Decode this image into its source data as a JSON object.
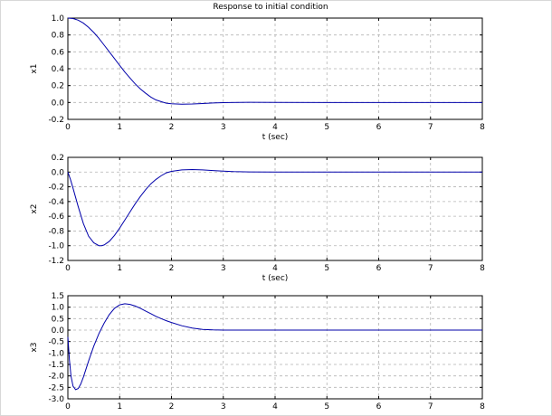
{
  "figure": {
    "title": "Response to initial condition"
  },
  "chart_data": [
    {
      "type": "line",
      "title": "Response to initial condition",
      "xlabel": "t (sec)",
      "ylabel": "x1",
      "xlim": [
        0,
        8
      ],
      "ylim": [
        -0.2,
        1.0
      ],
      "xticks": [
        0,
        1,
        2,
        3,
        4,
        5,
        6,
        7,
        8
      ],
      "yticks": [
        -0.2,
        0.0,
        0.2,
        0.4,
        0.6,
        0.8,
        1.0
      ],
      "ytick_labels": [
        "-0.2",
        "0.0",
        "0.2",
        "0.4",
        "0.6",
        "0.8",
        "1.0"
      ],
      "grid": true,
      "color": "#0000aa",
      "series": [
        {
          "x": [
            0,
            0.1,
            0.2,
            0.3,
            0.4,
            0.5,
            0.6,
            0.7,
            0.8,
            0.9,
            1.0,
            1.1,
            1.2,
            1.3,
            1.4,
            1.5,
            1.6,
            1.7,
            1.8,
            1.9,
            2.0,
            2.2,
            2.4,
            2.6,
            2.8,
            3.0,
            3.5,
            4.0,
            5.0,
            6.0,
            7.0,
            8.0
          ],
          "y": [
            1.0,
            0.995,
            0.975,
            0.94,
            0.89,
            0.83,
            0.76,
            0.68,
            0.6,
            0.52,
            0.44,
            0.36,
            0.29,
            0.22,
            0.16,
            0.11,
            0.065,
            0.03,
            0.01,
            -0.008,
            -0.015,
            -0.02,
            -0.018,
            -0.012,
            -0.006,
            -0.002,
            0.002,
            0.001,
            0.0,
            0.0,
            0.0,
            0.0
          ]
        }
      ]
    },
    {
      "type": "line",
      "xlabel": "t (sec)",
      "ylabel": "x2",
      "xlim": [
        0,
        8
      ],
      "ylim": [
        -1.2,
        0.2
      ],
      "xticks": [
        0,
        1,
        2,
        3,
        4,
        5,
        6,
        7,
        8
      ],
      "yticks": [
        -1.2,
        -1.0,
        -0.8,
        -0.6,
        -0.4,
        -0.2,
        0.0,
        0.2
      ],
      "ytick_labels": [
        "-1.2",
        "-1.0",
        "-0.8",
        "-0.6",
        "-0.4",
        "-0.2",
        "0.0",
        "0.2"
      ],
      "grid": true,
      "color": "#0000aa",
      "series": [
        {
          "x": [
            0,
            0.05,
            0.1,
            0.2,
            0.3,
            0.4,
            0.5,
            0.6,
            0.65,
            0.7,
            0.8,
            0.9,
            1.0,
            1.1,
            1.2,
            1.3,
            1.4,
            1.5,
            1.6,
            1.7,
            1.8,
            1.9,
            2.0,
            2.2,
            2.4,
            2.6,
            2.8,
            3.0,
            3.2,
            3.5,
            4.0,
            5.0,
            6.0,
            7.0,
            8.0
          ],
          "y": [
            0.0,
            -0.1,
            -0.22,
            -0.47,
            -0.7,
            -0.87,
            -0.96,
            -1.0,
            -1.0,
            -0.99,
            -0.94,
            -0.86,
            -0.76,
            -0.65,
            -0.54,
            -0.43,
            -0.33,
            -0.24,
            -0.16,
            -0.1,
            -0.05,
            -0.01,
            0.01,
            0.03,
            0.035,
            0.03,
            0.02,
            0.012,
            0.006,
            0.002,
            0.0,
            0.0,
            0.0,
            0.0,
            0.0
          ]
        }
      ]
    },
    {
      "type": "line",
      "xlabel": "",
      "ylabel": "x3",
      "xlim": [
        0,
        8
      ],
      "ylim": [
        -3.0,
        1.5
      ],
      "xticks": [
        0,
        1,
        2,
        3,
        4,
        5,
        6,
        7,
        8
      ],
      "yticks": [
        -3.0,
        -2.5,
        -2.0,
        -1.5,
        -1.0,
        -0.5,
        0.0,
        0.5,
        1.0,
        1.5
      ],
      "ytick_labels": [
        "-3.0",
        "-2.5",
        "-2.0",
        "-1.5",
        "-1.0",
        "-0.5",
        "0.0",
        "0.5",
        "1.0",
        "1.5"
      ],
      "grid": true,
      "color": "#0000aa",
      "series": [
        {
          "x": [
            0,
            0.03,
            0.06,
            0.1,
            0.15,
            0.2,
            0.25,
            0.3,
            0.35,
            0.4,
            0.5,
            0.6,
            0.7,
            0.8,
            0.9,
            1.0,
            1.1,
            1.2,
            1.3,
            1.4,
            1.5,
            1.6,
            1.7,
            1.8,
            1.9,
            2.0,
            2.2,
            2.4,
            2.6,
            2.8,
            3.0,
            4.0,
            5.0,
            6.0,
            7.0,
            8.0
          ],
          "y": [
            -0.3,
            -1.3,
            -2.0,
            -2.45,
            -2.6,
            -2.55,
            -2.35,
            -2.05,
            -1.7,
            -1.35,
            -0.7,
            -0.15,
            0.3,
            0.68,
            0.95,
            1.1,
            1.15,
            1.12,
            1.05,
            0.95,
            0.83,
            0.72,
            0.6,
            0.5,
            0.41,
            0.33,
            0.19,
            0.09,
            0.03,
            0.01,
            0.0,
            0.0,
            0.0,
            0.0,
            0.0,
            0.0
          ]
        }
      ]
    }
  ]
}
